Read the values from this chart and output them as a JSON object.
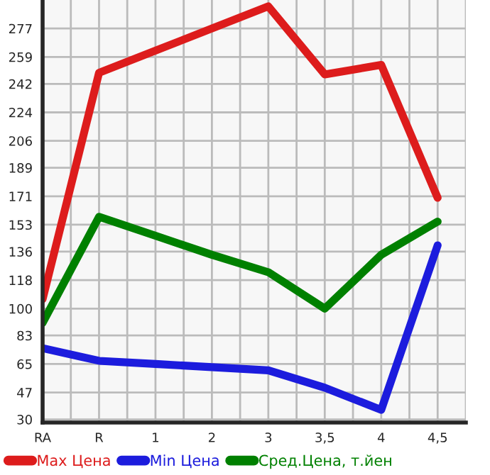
{
  "chart_data": {
    "type": "line",
    "categories": [
      "RA",
      "R",
      "1",
      "2",
      "3",
      "3,5",
      "4",
      "4,5"
    ],
    "series": [
      {
        "name": "Max Цена",
        "color": "#dd1c1c",
        "values": [
          106,
          249,
          263,
          277,
          291,
          248,
          254,
          170
        ]
      },
      {
        "name": "Min Цена",
        "color": "#1c1cdd",
        "values": [
          75,
          67,
          65,
          63,
          61,
          50,
          36,
          140
        ]
      },
      {
        "name": "Сред.Цена, т.йен",
        "color": "#008000",
        "values": [
          91,
          158,
          146,
          134,
          123,
          100,
          134,
          155
        ]
      }
    ],
    "ylim": [
      28,
      295
    ],
    "yticks": [
      30,
      47,
      65,
      83,
      100,
      118,
      136,
      153,
      171,
      189,
      206,
      224,
      242,
      259,
      277
    ],
    "grid": true,
    "legend": "bottom",
    "marker": "none",
    "line_style": "solid"
  }
}
